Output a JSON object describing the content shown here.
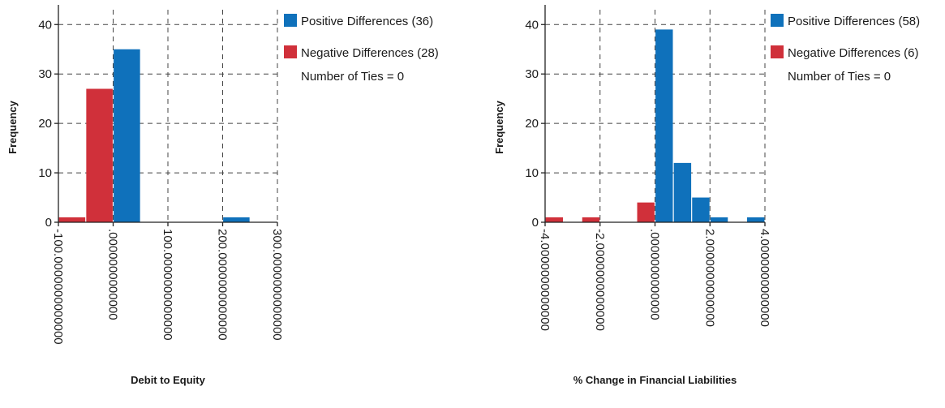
{
  "colors": {
    "positive": "#0f71bb",
    "negative": "#d0303a"
  },
  "chart_data": [
    {
      "type": "bar",
      "xlabel": "Debit to Equity",
      "ylabel": "Frequency",
      "xlim": [
        -100,
        300
      ],
      "ylim": [
        0,
        43
      ],
      "xticks": [
        -100,
        0,
        100,
        200,
        300
      ],
      "xtick_labels": [
        "-100.0000000000000",
        ".0000000000000",
        "100.0000000000000",
        "200.0000000000000",
        "300.0000000000000"
      ],
      "yticks": [
        0,
        10,
        20,
        30,
        40
      ],
      "ytick_labels": [
        "0",
        "10",
        "20",
        "30",
        "40"
      ],
      "bin_width": 50,
      "grid": true,
      "legend": {
        "position": "right",
        "positive_label": "Positive Differences (36)",
        "negative_label": "Negative Differences (28)",
        "ties_label": "Number of  Ties = 0"
      },
      "series": [
        {
          "name": "Negative Differences (28)",
          "color": "#d0303a",
          "bins": [
            {
              "x": -100,
              "value": 1
            },
            {
              "x": -50,
              "value": 27
            }
          ]
        },
        {
          "name": "Positive Differences (36)",
          "color": "#0f71bb",
          "bins": [
            {
              "x": 0,
              "value": 35
            },
            {
              "x": 200,
              "value": 1
            }
          ]
        }
      ]
    },
    {
      "type": "bar",
      "xlabel": "% Change in Financial Liabilities",
      "ylabel": "Frequency",
      "xlim": [
        -4,
        4
      ],
      "ylim": [
        0,
        43
      ],
      "xticks": [
        -4,
        -2,
        0,
        2,
        4
      ],
      "xtick_labels": [
        "-4.0000000000000",
        "-2.0000000000000",
        ".0000000000000",
        "2.0000000000000",
        "4.0000000000000"
      ],
      "yticks": [
        0,
        10,
        20,
        30,
        40
      ],
      "ytick_labels": [
        "0",
        "10",
        "20",
        "30",
        "40"
      ],
      "bin_width": 0.667,
      "grid": true,
      "legend": {
        "position": "right",
        "positive_label": "Positive Differences (58)",
        "negative_label": "Negative Differences (6)",
        "ties_label": "Number of  Ties = 0"
      },
      "series": [
        {
          "name": "Negative Differences (6)",
          "color": "#d0303a",
          "bins": [
            {
              "x": -4.0,
              "value": 1
            },
            {
              "x": -2.667,
              "value": 1
            },
            {
              "x": -0.667,
              "value": 4
            }
          ]
        },
        {
          "name": "Positive Differences (58)",
          "color": "#0f71bb",
          "bins": [
            {
              "x": 0.0,
              "value": 39
            },
            {
              "x": 0.667,
              "value": 12
            },
            {
              "x": 1.333,
              "value": 5
            },
            {
              "x": 2.0,
              "value": 1
            },
            {
              "x": 3.333,
              "value": 1
            }
          ]
        }
      ]
    }
  ]
}
